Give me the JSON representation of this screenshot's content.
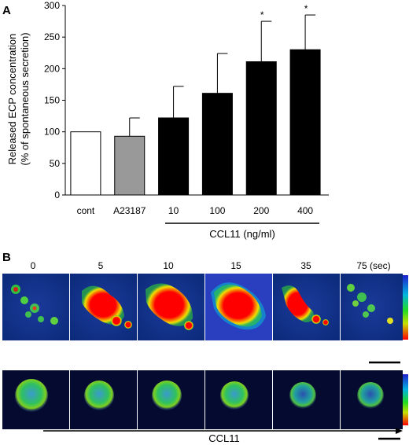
{
  "panel_a": {
    "letter": "A",
    "chart_data": {
      "type": "bar",
      "categories": [
        "cont",
        "A23187",
        "10",
        "100",
        "200",
        "400"
      ],
      "values": [
        100,
        93,
        122,
        161,
        211,
        230
      ],
      "errors": [
        0,
        29,
        50,
        63,
        64,
        55
      ],
      "significance": [
        "",
        "",
        "",
        "",
        "*",
        "*"
      ],
      "bar_colors": [
        "#ffffff",
        "#999999",
        "#000000",
        "#000000",
        "#000000",
        "#000000"
      ],
      "ylabel_line1": "Released ECP concentration",
      "ylabel_line2": "(% of  spontaneous secretion)",
      "ylim": [
        0,
        300
      ],
      "yticks": [
        "0",
        "50",
        "100",
        "150",
        "200",
        "250",
        "300"
      ],
      "group_label": "CCL11 (ng/ml)",
      "grid": false
    }
  },
  "panel_b": {
    "letter": "B",
    "time_labels": [
      "0",
      "5",
      "10",
      "15",
      "35",
      "75 (sec)"
    ],
    "colorbar_colors": [
      "#0000ff",
      "#00ffff",
      "#00ff00",
      "#ffff00",
      "#ff0000"
    ],
    "bottom_arrow_label": "CCL11"
  }
}
